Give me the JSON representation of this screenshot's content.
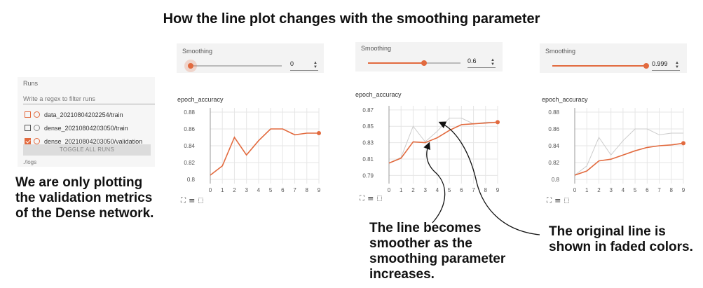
{
  "title": "How the line plot changes with the smoothing parameter",
  "runs": {
    "label": "Runs",
    "filter_placeholder": "Write a regex to filter runs",
    "items": [
      {
        "name": "data_20210804202254/train",
        "checked": false,
        "color": "#e26a3e"
      },
      {
        "name": "dense_20210804203050/train",
        "checked": false,
        "color": "#555555"
      },
      {
        "name": "dense_20210804203050/validation",
        "checked": true,
        "color": "#e26a3e"
      }
    ],
    "toggle_label": "TOGGLE ALL RUNS",
    "logdir": "./logs"
  },
  "captions": {
    "left": [
      "We are only plotting",
      "the validation metrics",
      "of the Dense network."
    ],
    "middle": [
      "The line becomes",
      "smoother as the",
      "smoothing parameter",
      "increases."
    ],
    "right": [
      "The original line is",
      "shown in faded colors."
    ]
  },
  "panels": [
    {
      "smoothing_label": "Smoothing",
      "smoothing_value": "0",
      "smoothing_fraction": 0,
      "chart_title": "epoch_accuracy"
    },
    {
      "smoothing_label": "Smoothing",
      "smoothing_value": "0.6",
      "smoothing_fraction": 0.6,
      "chart_title": "epoch_accuracy"
    },
    {
      "smoothing_label": "Smoothing",
      "smoothing_value": "0.999",
      "smoothing_fraction": 0.999,
      "chart_title": "epoch_accuracy"
    }
  ],
  "toolbar_icons": [
    "fullscreen-icon",
    "lines-icon",
    "fit-domain-icon"
  ],
  "colors": {
    "accent": "#e26a3e",
    "faded": "#cccccc",
    "grid": "#e6e6e6"
  },
  "chart_data": [
    {
      "type": "line",
      "title": "epoch_accuracy",
      "x": [
        0,
        1,
        2,
        3,
        4,
        5,
        6,
        7,
        8,
        9
      ],
      "xticks": [
        "0",
        "1",
        "2",
        "3",
        "4",
        "5",
        "6",
        "7",
        "8",
        "9"
      ],
      "ylim": [
        0.795,
        0.885
      ],
      "yticks": [
        "0.8",
        "0.82",
        "0.84",
        "0.86",
        "0.88"
      ],
      "series": [
        {
          "values": [
            0.805,
            0.816,
            0.85,
            0.829,
            0.846,
            0.86,
            0.86,
            0.853,
            0.855,
            0.855
          ],
          "color": "#e26a3e",
          "faded": false
        }
      ]
    },
    {
      "type": "line",
      "title": "epoch_accuracy",
      "x": [
        0,
        1,
        2,
        3,
        4,
        5,
        6,
        7,
        8,
        9
      ],
      "xticks": [
        "0",
        "1",
        "2",
        "3",
        "4",
        "5",
        "6",
        "7",
        "8",
        "9"
      ],
      "ylim": [
        0.78,
        0.875
      ],
      "yticks": [
        "0.79",
        "0.81",
        "0.83",
        "0.85",
        "0.87"
      ],
      "series": [
        {
          "values": [
            0.805,
            0.812,
            0.85,
            0.831,
            0.844,
            0.86,
            0.86,
            0.853,
            0.855,
            0.855
          ],
          "color": "#cccccc",
          "faded": true
        },
        {
          "values": [
            0.805,
            0.811,
            0.831,
            0.83,
            0.836,
            0.845,
            0.852,
            0.853,
            0.854,
            0.855
          ],
          "color": "#e26a3e",
          "faded": false
        }
      ]
    },
    {
      "type": "line",
      "title": "epoch_accuracy",
      "x": [
        0,
        1,
        2,
        3,
        4,
        5,
        6,
        7,
        8,
        9
      ],
      "xticks": [
        "0",
        "1",
        "2",
        "3",
        "4",
        "5",
        "6",
        "7",
        "8",
        "9"
      ],
      "ylim": [
        0.795,
        0.885
      ],
      "yticks": [
        "0.8",
        "0.82",
        "0.84",
        "0.86",
        "0.88"
      ],
      "series": [
        {
          "values": [
            0.805,
            0.816,
            0.85,
            0.829,
            0.846,
            0.86,
            0.86,
            0.853,
            0.855,
            0.855
          ],
          "color": "#cccccc",
          "faded": true
        },
        {
          "values": [
            0.805,
            0.81,
            0.822,
            0.824,
            0.829,
            0.834,
            0.838,
            0.84,
            0.841,
            0.843
          ],
          "color": "#e26a3e",
          "faded": false
        }
      ]
    }
  ]
}
